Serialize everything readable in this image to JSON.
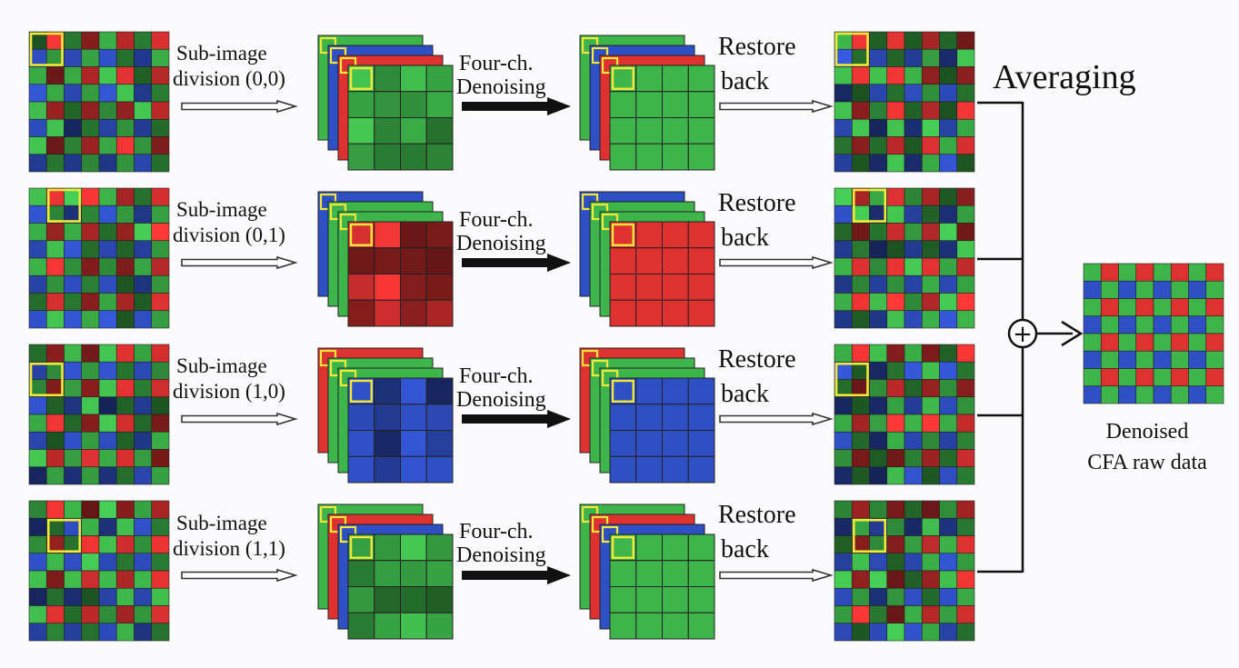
{
  "labels": {
    "subimage_line1": "Sub-image",
    "denoise_line1": "Four-ch.",
    "denoise_line2": "Denoising",
    "restore_line1": "Restore",
    "restore_line2": "back",
    "averaging": "Averaging",
    "sum_symbol": "+",
    "output_line1": "Denoised",
    "output_line2": "CFA raw data"
  },
  "rows": [
    {
      "division_label": "division (0,0)",
      "stack_front_color": "green",
      "denoised_color": "green"
    },
    {
      "division_label": "division (0,1)",
      "stack_front_color": "red",
      "denoised_color": "red"
    },
    {
      "division_label": "division (1,0)",
      "stack_front_color": "blue",
      "denoised_color": "blue"
    },
    {
      "division_label": "division (1,1)",
      "stack_front_color": "green",
      "denoised_color": "green"
    }
  ],
  "colors": {
    "red": "#e03131",
    "green": "#3db54a",
    "blue": "#2f4fc4",
    "highlight": "#f2e83a",
    "connector": "#111111"
  }
}
